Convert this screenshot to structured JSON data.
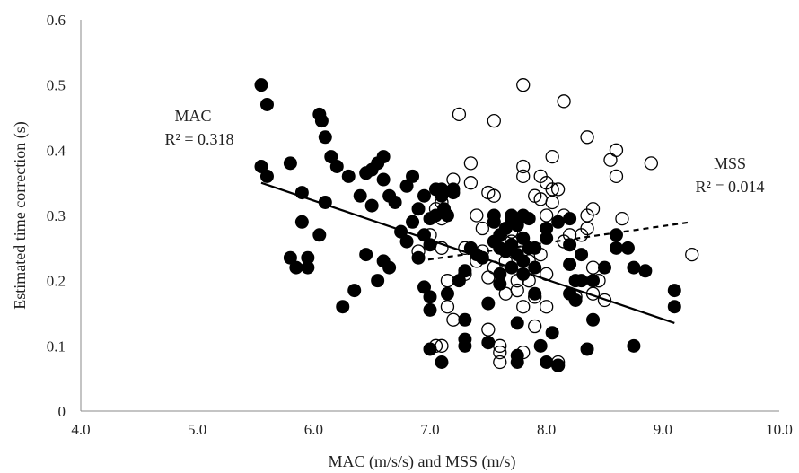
{
  "chart_data": {
    "type": "scatter",
    "title": "",
    "xlabel": "MAC (m/s/s) and MSS (m/s)",
    "ylabel": "Estimated time correction (s)",
    "xlim": [
      4.0,
      10.0
    ],
    "ylim": [
      0,
      0.6
    ],
    "x_ticks": [
      "4.0",
      "5.0",
      "6.0",
      "7.0",
      "8.0",
      "9.0",
      "10.0"
    ],
    "y_ticks": [
      "0",
      "0.1",
      "0.2",
      "0.3",
      "0.4",
      "0.5",
      "0.6"
    ],
    "grid": false,
    "legend": "none",
    "series": [
      {
        "name": "MAC",
        "marker": "filled-circle",
        "color": "#000000",
        "points": [
          [
            5.55,
            0.5
          ],
          [
            5.6,
            0.47
          ],
          [
            5.55,
            0.375
          ],
          [
            5.6,
            0.36
          ],
          [
            5.8,
            0.38
          ],
          [
            5.8,
            0.235
          ],
          [
            5.85,
            0.22
          ],
          [
            5.9,
            0.335
          ],
          [
            5.9,
            0.29
          ],
          [
            5.95,
            0.235
          ],
          [
            5.95,
            0.22
          ],
          [
            6.05,
            0.27
          ],
          [
            6.05,
            0.455
          ],
          [
            6.07,
            0.445
          ],
          [
            6.1,
            0.42
          ],
          [
            6.1,
            0.32
          ],
          [
            6.15,
            0.39
          ],
          [
            6.2,
            0.375
          ],
          [
            6.25,
            0.16
          ],
          [
            6.3,
            0.36
          ],
          [
            6.35,
            0.185
          ],
          [
            6.4,
            0.33
          ],
          [
            6.45,
            0.365
          ],
          [
            6.45,
            0.24
          ],
          [
            6.5,
            0.37
          ],
          [
            6.5,
            0.315
          ],
          [
            6.55,
            0.38
          ],
          [
            6.55,
            0.2
          ],
          [
            6.6,
            0.39
          ],
          [
            6.6,
            0.355
          ],
          [
            6.6,
            0.23
          ],
          [
            6.65,
            0.22
          ],
          [
            6.65,
            0.33
          ],
          [
            6.7,
            0.32
          ],
          [
            6.75,
            0.275
          ],
          [
            6.8,
            0.26
          ],
          [
            6.8,
            0.345
          ],
          [
            6.85,
            0.36
          ],
          [
            6.85,
            0.29
          ],
          [
            6.9,
            0.235
          ],
          [
            6.9,
            0.31
          ],
          [
            6.95,
            0.33
          ],
          [
            6.95,
            0.27
          ],
          [
            6.95,
            0.19
          ],
          [
            7.0,
            0.255
          ],
          [
            7.0,
            0.295
          ],
          [
            7.0,
            0.175
          ],
          [
            7.0,
            0.155
          ],
          [
            7.0,
            0.095
          ],
          [
            7.05,
            0.34
          ],
          [
            7.05,
            0.3
          ],
          [
            7.1,
            0.33
          ],
          [
            7.1,
            0.34
          ],
          [
            7.12,
            0.31
          ],
          [
            7.15,
            0.3
          ],
          [
            7.15,
            0.18
          ],
          [
            7.1,
            0.075
          ],
          [
            7.2,
            0.34
          ],
          [
            7.2,
            0.335
          ],
          [
            7.25,
            0.2
          ],
          [
            7.3,
            0.215
          ],
          [
            7.3,
            0.14
          ],
          [
            7.3,
            0.1
          ],
          [
            7.3,
            0.11
          ],
          [
            7.35,
            0.25
          ],
          [
            7.4,
            0.24
          ],
          [
            7.45,
            0.235
          ],
          [
            7.5,
            0.165
          ],
          [
            7.5,
            0.105
          ],
          [
            7.55,
            0.3
          ],
          [
            7.55,
            0.29
          ],
          [
            7.55,
            0.26
          ],
          [
            7.6,
            0.27
          ],
          [
            7.6,
            0.25
          ],
          [
            7.6,
            0.21
          ],
          [
            7.6,
            0.195
          ],
          [
            7.65,
            0.28
          ],
          [
            7.65,
            0.245
          ],
          [
            7.7,
            0.3
          ],
          [
            7.7,
            0.29
          ],
          [
            7.7,
            0.255
          ],
          [
            7.7,
            0.22
          ],
          [
            7.75,
            0.285
          ],
          [
            7.75,
            0.24
          ],
          [
            7.75,
            0.135
          ],
          [
            7.75,
            0.085
          ],
          [
            7.75,
            0.075
          ],
          [
            7.8,
            0.3
          ],
          [
            7.8,
            0.265
          ],
          [
            7.8,
            0.23
          ],
          [
            7.8,
            0.21
          ],
          [
            7.85,
            0.295
          ],
          [
            7.85,
            0.25
          ],
          [
            7.9,
            0.25
          ],
          [
            7.9,
            0.22
          ],
          [
            7.9,
            0.18
          ],
          [
            7.95,
            0.1
          ],
          [
            8.0,
            0.28
          ],
          [
            8.0,
            0.265
          ],
          [
            8.0,
            0.075
          ],
          [
            8.05,
            0.12
          ],
          [
            8.1,
            0.07
          ],
          [
            8.1,
            0.29
          ],
          [
            8.2,
            0.295
          ],
          [
            8.2,
            0.255
          ],
          [
            8.2,
            0.225
          ],
          [
            8.2,
            0.18
          ],
          [
            8.25,
            0.2
          ],
          [
            8.25,
            0.17
          ],
          [
            8.3,
            0.24
          ],
          [
            8.3,
            0.2
          ],
          [
            8.35,
            0.095
          ],
          [
            8.4,
            0.2
          ],
          [
            8.4,
            0.14
          ],
          [
            8.5,
            0.22
          ],
          [
            8.6,
            0.27
          ],
          [
            8.6,
            0.25
          ],
          [
            8.7,
            0.25
          ],
          [
            8.75,
            0.22
          ],
          [
            8.75,
            0.1
          ],
          [
            8.85,
            0.215
          ],
          [
            9.1,
            0.185
          ],
          [
            9.1,
            0.16
          ]
        ]
      },
      {
        "name": "MSS",
        "marker": "open-circle",
        "color": "#000000",
        "points": [
          [
            6.9,
            0.245
          ],
          [
            7.0,
            0.27
          ],
          [
            7.05,
            0.31
          ],
          [
            7.1,
            0.295
          ],
          [
            7.1,
            0.32
          ],
          [
            7.1,
            0.25
          ],
          [
            7.05,
            0.1
          ],
          [
            7.1,
            0.1
          ],
          [
            7.15,
            0.2
          ],
          [
            7.15,
            0.16
          ],
          [
            7.2,
            0.355
          ],
          [
            7.2,
            0.14
          ],
          [
            7.25,
            0.455
          ],
          [
            7.3,
            0.25
          ],
          [
            7.3,
            0.21
          ],
          [
            7.35,
            0.38
          ],
          [
            7.35,
            0.35
          ],
          [
            7.4,
            0.3
          ],
          [
            7.4,
            0.23
          ],
          [
            7.45,
            0.28
          ],
          [
            7.45,
            0.245
          ],
          [
            7.5,
            0.335
          ],
          [
            7.5,
            0.205
          ],
          [
            7.5,
            0.125
          ],
          [
            7.55,
            0.445
          ],
          [
            7.55,
            0.33
          ],
          [
            7.55,
            0.22
          ],
          [
            7.6,
            0.09
          ],
          [
            7.6,
            0.075
          ],
          [
            7.6,
            0.1
          ],
          [
            7.65,
            0.23
          ],
          [
            7.65,
            0.18
          ],
          [
            7.7,
            0.295
          ],
          [
            7.7,
            0.275
          ],
          [
            7.7,
            0.26
          ],
          [
            7.75,
            0.2
          ],
          [
            7.75,
            0.185
          ],
          [
            7.8,
            0.5
          ],
          [
            7.8,
            0.375
          ],
          [
            7.8,
            0.36
          ],
          [
            7.8,
            0.16
          ],
          [
            7.8,
            0.09
          ],
          [
            7.85,
            0.23
          ],
          [
            7.85,
            0.2
          ],
          [
            7.9,
            0.33
          ],
          [
            7.9,
            0.175
          ],
          [
            7.9,
            0.13
          ],
          [
            7.95,
            0.36
          ],
          [
            7.95,
            0.325
          ],
          [
            7.95,
            0.24
          ],
          [
            8.0,
            0.35
          ],
          [
            8.0,
            0.3
          ],
          [
            8.0,
            0.21
          ],
          [
            8.0,
            0.16
          ],
          [
            8.05,
            0.39
          ],
          [
            8.05,
            0.34
          ],
          [
            8.05,
            0.32
          ],
          [
            8.1,
            0.34
          ],
          [
            8.1,
            0.07
          ],
          [
            8.1,
            0.075
          ],
          [
            8.15,
            0.475
          ],
          [
            8.15,
            0.3
          ],
          [
            8.15,
            0.26
          ],
          [
            8.2,
            0.27
          ],
          [
            8.25,
            0.175
          ],
          [
            8.3,
            0.27
          ],
          [
            8.35,
            0.42
          ],
          [
            8.35,
            0.3
          ],
          [
            8.35,
            0.28
          ],
          [
            8.4,
            0.31
          ],
          [
            8.4,
            0.22
          ],
          [
            8.4,
            0.18
          ],
          [
            8.45,
            0.2
          ],
          [
            8.5,
            0.17
          ],
          [
            8.55,
            0.385
          ],
          [
            8.6,
            0.4
          ],
          [
            8.6,
            0.36
          ],
          [
            8.65,
            0.295
          ],
          [
            8.9,
            0.38
          ],
          [
            9.25,
            0.24
          ]
        ]
      }
    ],
    "trendlines": [
      {
        "name": "MAC",
        "style": "solid",
        "x": [
          5.55,
          9.1
        ],
        "y": [
          0.35,
          0.135
        ]
      },
      {
        "name": "MSS",
        "style": "dashed",
        "x": [
          6.9,
          9.25
        ],
        "y": [
          0.23,
          0.29
        ]
      }
    ],
    "annotations": [
      {
        "name": "MAC",
        "text": "MAC",
        "text2": "R² = 0.318"
      },
      {
        "name": "MSS",
        "text": "MSS",
        "text2": "R² = 0.014"
      }
    ]
  }
}
